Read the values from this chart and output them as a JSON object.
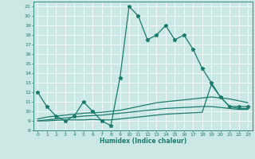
{
  "title": "",
  "xlabel": "Humidex (Indice chaleur)",
  "bg_color": "#cce8e4",
  "line_color": "#1a7a6e",
  "grid_color": "#ffffff",
  "xlim": [
    -0.5,
    23.5
  ],
  "ylim": [
    8,
    21.5
  ],
  "yticks": [
    8,
    9,
    10,
    11,
    12,
    13,
    14,
    15,
    16,
    17,
    18,
    19,
    20,
    21
  ],
  "xticks": [
    0,
    1,
    2,
    3,
    4,
    5,
    6,
    7,
    8,
    9,
    10,
    11,
    12,
    13,
    14,
    15,
    16,
    17,
    18,
    19,
    20,
    21,
    22,
    23
  ],
  "series": [
    {
      "x": [
        0,
        1,
        2,
        3,
        4,
        5,
        6,
        7,
        8,
        9,
        10,
        11,
        12,
        13,
        14,
        15,
        16,
        17,
        18,
        19,
        20,
        21,
        22,
        23
      ],
      "y": [
        12,
        10.5,
        9.5,
        9,
        9.5,
        11,
        10,
        9,
        8.5,
        13.5,
        21,
        20,
        17.5,
        18,
        19,
        17.5,
        18,
        16.5,
        14.5,
        13,
        11.5,
        10.5,
        10.5,
        10.5
      ],
      "marker": "*",
      "markersize": 3.5,
      "linewidth": 0.9
    },
    {
      "x": [
        0,
        1,
        2,
        3,
        4,
        5,
        6,
        7,
        8,
        9,
        10,
        11,
        12,
        13,
        14,
        15,
        16,
        17,
        18,
        19,
        20,
        21,
        22,
        23
      ],
      "y": [
        9.2,
        9.4,
        9.5,
        9.6,
        9.7,
        9.8,
        9.85,
        9.9,
        10.0,
        10.1,
        10.3,
        10.5,
        10.7,
        10.9,
        11.0,
        11.1,
        11.2,
        11.3,
        11.4,
        11.5,
        11.4,
        11.3,
        11.1,
        10.9
      ],
      "marker": null,
      "markersize": 0,
      "linewidth": 0.9
    },
    {
      "x": [
        0,
        1,
        2,
        3,
        4,
        5,
        6,
        7,
        8,
        9,
        10,
        11,
        12,
        13,
        14,
        15,
        16,
        17,
        18,
        19,
        20,
        21,
        22,
        23
      ],
      "y": [
        9.0,
        9.1,
        9.2,
        9.3,
        9.4,
        9.5,
        9.55,
        9.6,
        9.7,
        9.8,
        9.9,
        10.0,
        10.1,
        10.2,
        10.3,
        10.35,
        10.4,
        10.45,
        10.5,
        10.5,
        10.4,
        10.3,
        10.2,
        10.2
      ],
      "marker": null,
      "markersize": 0,
      "linewidth": 0.9
    },
    {
      "x": [
        0,
        1,
        2,
        3,
        4,
        5,
        6,
        7,
        8,
        9,
        10,
        11,
        12,
        13,
        14,
        15,
        16,
        17,
        18,
        19,
        20,
        21,
        22,
        23
      ],
      "y": [
        9.0,
        9.0,
        9.05,
        9.1,
        9.1,
        9.1,
        9.15,
        9.1,
        9.1,
        9.2,
        9.3,
        9.4,
        9.5,
        9.6,
        9.7,
        9.75,
        9.8,
        9.85,
        9.9,
        12.8,
        11.5,
        10.5,
        10.3,
        10.3
      ],
      "marker": null,
      "markersize": 0,
      "linewidth": 0.9
    }
  ]
}
